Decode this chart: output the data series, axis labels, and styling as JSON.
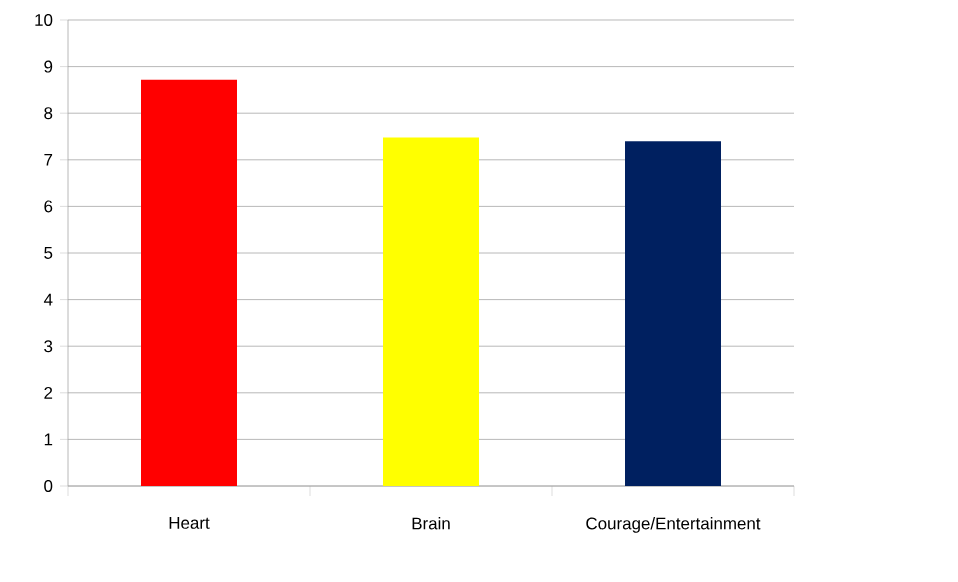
{
  "chart_data": {
    "type": "bar",
    "categories": [
      "Heart",
      "Brain",
      "Courage/Entertainment"
    ],
    "values": [
      8.72,
      7.48,
      7.4
    ],
    "colors": [
      "#ff0000",
      "#ffff00",
      "#002060"
    ],
    "ylim": [
      0,
      10
    ],
    "yticks": [
      0,
      1,
      2,
      3,
      4,
      5,
      6,
      7,
      8,
      9,
      10
    ],
    "grid": "y"
  }
}
